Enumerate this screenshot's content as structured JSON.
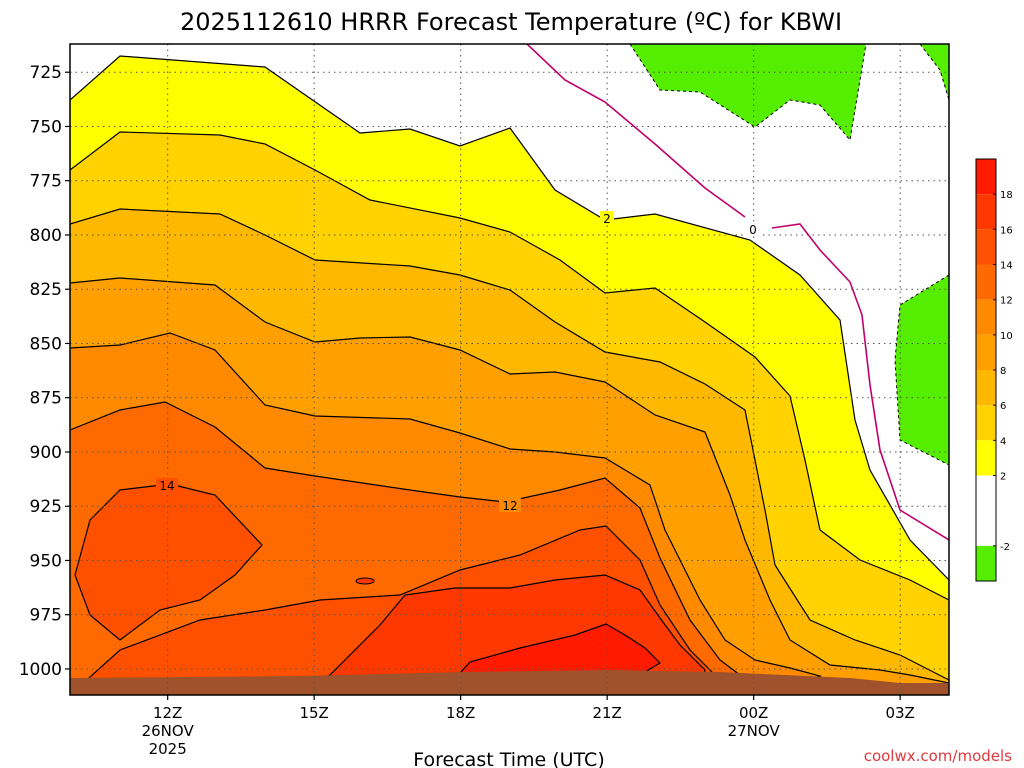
{
  "chart_data": {
    "type": "heatmap",
    "title": "2025112610 HRRR Forecast Temperature (ºC) for KBWI",
    "xlabel": "Forecast Time (UTC)",
    "ylabel": "",
    "y_scale": "pressure (hPa), reversed",
    "ylim": [
      1012,
      712
    ],
    "y_ticks": [
      725,
      750,
      775,
      800,
      825,
      850,
      875,
      900,
      925,
      950,
      975,
      1000
    ],
    "x_ticks": [
      {
        "hour": 12,
        "label": "12Z",
        "sub": [
          "26NOV",
          "2025"
        ]
      },
      {
        "hour": 15,
        "label": "15Z",
        "sub": []
      },
      {
        "hour": 18,
        "label": "18Z",
        "sub": []
      },
      {
        "hour": 21,
        "label": "21Z",
        "sub": []
      },
      {
        "hour": 24,
        "label": "00Z",
        "sub": [
          "27NOV"
        ]
      },
      {
        "hour": 27,
        "label": "03Z",
        "sub": []
      }
    ],
    "xlim": [
      10,
      28
    ],
    "grid": true,
    "contour_labels": [
      "14",
      "12",
      "2",
      "0"
    ],
    "colorbar": {
      "position": "right",
      "tick_labels": [
        "18",
        "16",
        "14",
        "12",
        "10",
        "8",
        "6",
        "4",
        "2",
        "-2"
      ],
      "bins": [
        {
          "lo": 18,
          "hi": 20,
          "color": "#ff1a00"
        },
        {
          "lo": 16,
          "hi": 18,
          "color": "#ff3800"
        },
        {
          "lo": 14,
          "hi": 16,
          "color": "#ff5000"
        },
        {
          "lo": 12,
          "hi": 14,
          "color": "#ff6a00"
        },
        {
          "lo": 10,
          "hi": 12,
          "color": "#ff8a00"
        },
        {
          "lo": 8,
          "hi": 10,
          "color": "#ffa000"
        },
        {
          "lo": 6,
          "hi": 8,
          "color": "#ffb800"
        },
        {
          "lo": 4,
          "hi": 6,
          "color": "#ffd200"
        },
        {
          "lo": 2,
          "hi": 4,
          "color": "#ffff00"
        },
        {
          "lo": -2,
          "hi": 2,
          "color": "#ffffff"
        },
        {
          "lo": -4,
          "hi": -2,
          "color": "#55ee00"
        }
      ]
    },
    "ground_color": "#a0522d",
    "freezing_line_color": "#c0006a"
  },
  "credit": "coolwx.com/models"
}
